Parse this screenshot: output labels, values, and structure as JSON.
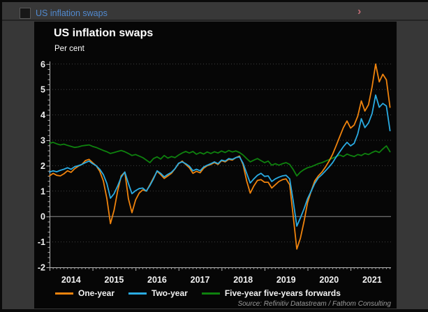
{
  "titlebar": {
    "title": "US inflation swaps",
    "title_color": "#5189ce",
    "chevron": "›",
    "chevron_color": "#bb6b73"
  },
  "chart": {
    "title": "US inflation swaps",
    "subtitle": "Per cent",
    "source": "Source: Refinitiv Datastream / Fathom Consulting"
  },
  "chart_data": {
    "type": "line",
    "title": "US inflation swaps",
    "ylabel": "Per cent",
    "ylim": [
      -2,
      6
    ],
    "xlim": [
      2014,
      2021.94
    ],
    "yticks": [
      -2,
      -1,
      0,
      1,
      2,
      3,
      4,
      5,
      6
    ],
    "y_minor_step": 0.2,
    "xtick_years": [
      2014,
      2015,
      2016,
      2017,
      2018,
      2019,
      2020,
      2021
    ],
    "xtick_label_offset": 0.5,
    "x_minor_step": 0.0833333,
    "grid": "dotted horizontal lines at integer values, solid line at zero",
    "legend_position": "bottom",
    "colors": {
      "background": "#060606",
      "axis": "#b5b5b5",
      "grid": "#404040",
      "zero_line": "#8c8c8c",
      "tick_text": "#f2f2f2"
    },
    "x_start": 2014.0,
    "x_step": 0.0833333,
    "series": [
      {
        "name": "One-year",
        "color": "#ef830d",
        "values": [
          1.6,
          1.7,
          1.62,
          1.6,
          1.68,
          1.8,
          1.74,
          1.88,
          1.98,
          2.05,
          2.2,
          2.25,
          2.12,
          2.0,
          1.78,
          1.4,
          0.7,
          -0.28,
          0.25,
          1.0,
          1.6,
          1.75,
          0.7,
          0.15,
          0.65,
          0.92,
          1.05,
          1.0,
          1.25,
          1.52,
          1.78,
          1.65,
          1.5,
          1.6,
          1.7,
          1.88,
          2.08,
          2.18,
          2.05,
          1.92,
          1.7,
          1.78,
          1.72,
          1.9,
          2.0,
          2.05,
          2.12,
          2.05,
          2.2,
          2.15,
          2.25,
          2.22,
          2.32,
          2.38,
          2.05,
          1.4,
          0.92,
          1.2,
          1.42,
          1.45,
          1.35,
          1.35,
          1.12,
          1.25,
          1.38,
          1.45,
          1.48,
          1.25,
          0.0,
          -1.28,
          -0.85,
          -0.2,
          0.55,
          1.0,
          1.4,
          1.6,
          1.75,
          1.95,
          2.18,
          2.45,
          2.8,
          3.15,
          3.5,
          3.76,
          3.48,
          3.6,
          3.95,
          4.55,
          4.15,
          4.4,
          5.1,
          6.0,
          5.3,
          5.6,
          5.38,
          4.3
        ]
      },
      {
        "name": "Two-year",
        "color": "#2aabe2",
        "values": [
          1.75,
          1.8,
          1.76,
          1.82,
          1.86,
          1.92,
          1.86,
          1.96,
          2.0,
          2.05,
          2.12,
          2.18,
          2.08,
          2.0,
          1.86,
          1.65,
          1.3,
          0.72,
          0.9,
          1.2,
          1.55,
          1.75,
          1.3,
          0.9,
          1.02,
          1.1,
          1.12,
          1.0,
          1.22,
          1.48,
          1.8,
          1.7,
          1.56,
          1.66,
          1.74,
          1.88,
          2.1,
          2.15,
          2.08,
          1.98,
          1.8,
          1.86,
          1.8,
          1.95,
          2.02,
          2.08,
          2.15,
          2.08,
          2.22,
          2.18,
          2.28,
          2.25,
          2.32,
          2.35,
          2.1,
          1.7,
          1.32,
          1.48,
          1.62,
          1.7,
          1.58,
          1.6,
          1.38,
          1.48,
          1.55,
          1.6,
          1.62,
          1.48,
          0.6,
          -0.38,
          -0.05,
          0.3,
          0.7,
          1.0,
          1.3,
          1.52,
          1.65,
          1.8,
          1.95,
          2.12,
          2.35,
          2.55,
          2.75,
          2.92,
          2.78,
          2.88,
          3.25,
          3.85,
          3.5,
          3.68,
          4.05,
          4.78,
          4.3,
          4.45,
          4.35,
          3.38
        ]
      },
      {
        "name": "Five-year five-years forwards",
        "color": "#0e810e",
        "values": [
          2.88,
          2.92,
          2.86,
          2.82,
          2.85,
          2.8,
          2.76,
          2.72,
          2.74,
          2.78,
          2.8,
          2.82,
          2.76,
          2.72,
          2.66,
          2.6,
          2.55,
          2.48,
          2.52,
          2.56,
          2.6,
          2.55,
          2.48,
          2.4,
          2.44,
          2.38,
          2.32,
          2.22,
          2.12,
          2.28,
          2.35,
          2.26,
          2.4,
          2.3,
          2.36,
          2.32,
          2.42,
          2.5,
          2.56,
          2.5,
          2.56,
          2.45,
          2.52,
          2.46,
          2.54,
          2.48,
          2.55,
          2.5,
          2.58,
          2.52,
          2.6,
          2.54,
          2.58,
          2.52,
          2.42,
          2.28,
          2.15,
          2.22,
          2.28,
          2.2,
          2.12,
          2.18,
          2.02,
          2.08,
          2.02,
          2.08,
          2.12,
          2.05,
          1.85,
          1.6,
          1.75,
          1.85,
          1.92,
          1.96,
          2.02,
          2.08,
          2.12,
          2.18,
          2.24,
          2.3,
          2.36,
          2.42,
          2.36,
          2.46,
          2.4,
          2.36,
          2.44,
          2.4,
          2.48,
          2.44,
          2.52,
          2.58,
          2.52,
          2.66,
          2.78,
          2.55
        ]
      }
    ]
  }
}
